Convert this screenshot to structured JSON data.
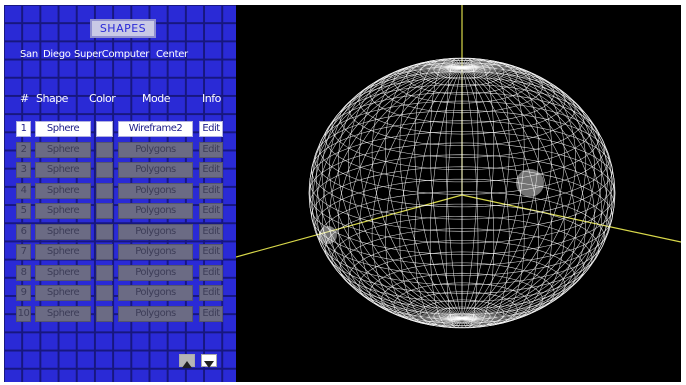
{
  "panel": {
    "title": "SHAPES",
    "credits": [
      "San",
      "Diego",
      "SuperComputer",
      "Center"
    ],
    "columns": {
      "num": "#",
      "shape": "Shape",
      "color": "Color",
      "mode": "Mode",
      "info": "Info"
    },
    "rows": [
      {
        "num": "1",
        "shape": "Sphere",
        "mode": "Wireframe2",
        "info": "Edit",
        "active": true
      },
      {
        "num": "2",
        "shape": "Sphere",
        "mode": "Polygons",
        "info": "Edit",
        "active": false
      },
      {
        "num": "3",
        "shape": "Sphere",
        "mode": "Polygons",
        "info": "Edit",
        "active": false
      },
      {
        "num": "4",
        "shape": "Sphere",
        "mode": "Polygons",
        "info": "Edit",
        "active": false
      },
      {
        "num": "5",
        "shape": "Sphere",
        "mode": "Polygons",
        "info": "Edit",
        "active": false
      },
      {
        "num": "6",
        "shape": "Sphere",
        "mode": "Polygons",
        "info": "Edit",
        "active": false
      },
      {
        "num": "7",
        "shape": "Sphere",
        "mode": "Polygons",
        "info": "Edit",
        "active": false
      },
      {
        "num": "8",
        "shape": "Sphere",
        "mode": "Polygons",
        "info": "Edit",
        "active": false
      },
      {
        "num": "9",
        "shape": "Sphere",
        "mode": "Polygons",
        "info": "Edit",
        "active": false
      },
      {
        "num": "10",
        "shape": "Sphere",
        "mode": "Polygons",
        "info": "Edit",
        "active": false
      }
    ],
    "scroll": {
      "up_icon": "triangle-up-icon",
      "down_icon": "triangle-down-icon"
    }
  },
  "viewport": {
    "object": "wireframe-sphere",
    "wire_color": "#ffffff",
    "axis_color": "#d8d84a",
    "background": "#000000"
  },
  "colors": {
    "panel_blue": "#2a2ad6",
    "panel_grid": "#17177f",
    "disabled_gray": "#6b6b84"
  }
}
